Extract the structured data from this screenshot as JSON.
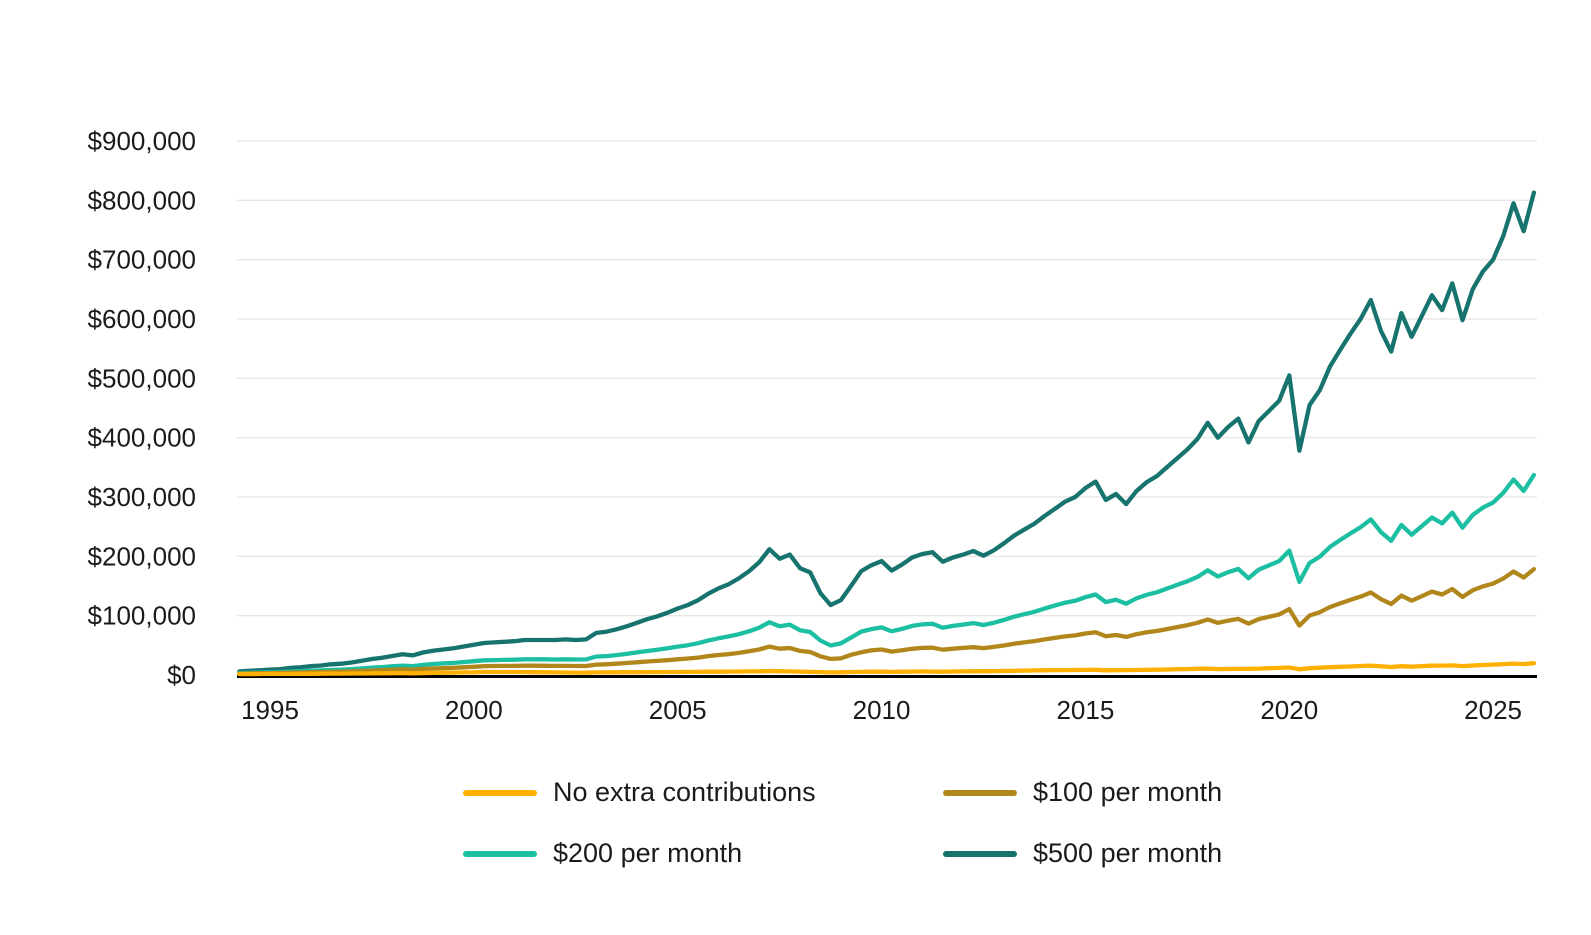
{
  "chart_data": {
    "type": "line",
    "title": "",
    "xlabel": "",
    "ylabel": "",
    "grid": "horizontal",
    "legend_position": "bottom",
    "xlim": [
      1994.25,
      2026.0
    ],
    "ylim": [
      0,
      900000
    ],
    "y_ticks": [
      {
        "value": 0,
        "label": "$0"
      },
      {
        "value": 100000,
        "label": "$100,000"
      },
      {
        "value": 200000,
        "label": "$200,000"
      },
      {
        "value": 300000,
        "label": "$300,000"
      },
      {
        "value": 400000,
        "label": "$400,000"
      },
      {
        "value": 500000,
        "label": "$500,000"
      },
      {
        "value": 600000,
        "label": "$600,000"
      },
      {
        "value": 700000,
        "label": "$700,000"
      },
      {
        "value": 800000,
        "label": "$800,000"
      },
      {
        "value": 900000,
        "label": "$900,000"
      }
    ],
    "x_ticks": [
      {
        "value": 1995,
        "label": "1995"
      },
      {
        "value": 2000,
        "label": "2000"
      },
      {
        "value": 2005,
        "label": "2005"
      },
      {
        "value": 2010,
        "label": "2010"
      },
      {
        "value": 2015,
        "label": "2015"
      },
      {
        "value": 2020,
        "label": "2020"
      },
      {
        "value": 2025,
        "label": "2025"
      }
    ],
    "colors": {
      "axis_line": "#000000",
      "gridline": "#e3e3e3",
      "text": "#1b1b1b"
    },
    "x": [
      1994.25,
      1994.5,
      1994.75,
      1995.0,
      1995.25,
      1995.5,
      1995.75,
      1996.0,
      1996.25,
      1996.5,
      1996.75,
      1997.0,
      1997.25,
      1997.5,
      1997.75,
      1998.0,
      1998.25,
      1998.5,
      1998.75,
      1999.0,
      1999.25,
      1999.5,
      1999.75,
      2000.0,
      2000.25,
      2000.5,
      2000.75,
      2001.0,
      2001.25,
      2001.5,
      2001.75,
      2002.0,
      2002.25,
      2002.5,
      2002.75,
      2003.0,
      2003.25,
      2003.5,
      2003.75,
      2004.0,
      2004.25,
      2004.5,
      2004.75,
      2005.0,
      2005.25,
      2005.5,
      2005.75,
      2006.0,
      2006.25,
      2006.5,
      2006.75,
      2007.0,
      2007.25,
      2007.5,
      2007.75,
      2008.0,
      2008.25,
      2008.5,
      2008.75,
      2009.0,
      2009.25,
      2009.5,
      2009.75,
      2010.0,
      2010.25,
      2010.5,
      2010.75,
      2011.0,
      2011.25,
      2011.5,
      2011.75,
      2012.0,
      2012.25,
      2012.5,
      2012.75,
      2013.0,
      2013.25,
      2013.5,
      2013.75,
      2014.0,
      2014.25,
      2014.5,
      2014.75,
      2015.0,
      2015.25,
      2015.5,
      2015.75,
      2016.0,
      2016.25,
      2016.5,
      2016.75,
      2017.0,
      2017.25,
      2017.5,
      2017.75,
      2018.0,
      2018.25,
      2018.5,
      2018.75,
      2019.0,
      2019.25,
      2019.5,
      2019.75,
      2020.0,
      2020.25,
      2020.5,
      2020.75,
      2021.0,
      2021.25,
      2021.5,
      2021.75,
      2022.0,
      2022.25,
      2022.5,
      2022.75,
      2023.0,
      2023.25,
      2023.5,
      2023.75,
      2024.0,
      2024.25,
      2024.5,
      2024.75,
      2025.0,
      2025.25,
      2025.5,
      2025.75,
      2026.0
    ],
    "series": [
      {
        "key": "no_extra",
        "name": "No extra contributions",
        "color": "#FFB000",
        "values": [
          1500,
          1600,
          1700,
          1800,
          1900,
          1900,
          2000,
          2100,
          2200,
          2300,
          2400,
          2500,
          2600,
          2700,
          2900,
          3000,
          3200,
          2900,
          3200,
          3500,
          3800,
          4000,
          4300,
          4600,
          5200,
          5100,
          5100,
          5000,
          4900,
          4700,
          4600,
          4400,
          4200,
          4100,
          3900,
          4300,
          4400,
          4500,
          4700,
          4800,
          4900,
          4900,
          5000,
          5100,
          5200,
          5300,
          5500,
          5600,
          5800,
          5900,
          6100,
          6300,
          6800,
          6400,
          6100,
          5700,
          5300,
          4900,
          4400,
          4600,
          5000,
          5300,
          5600,
          5800,
          5300,
          5500,
          5800,
          6000,
          5800,
          5500,
          5900,
          6200,
          6300,
          6400,
          6600,
          6800,
          7100,
          7400,
          7700,
          8000,
          8200,
          8300,
          8500,
          8600,
          8800,
          8000,
          8100,
          8200,
          8500,
          8700,
          9000,
          9300,
          9700,
          10000,
          10400,
          10800,
          10000,
          10100,
          10200,
          10200,
          10800,
          11400,
          12000,
          12600,
          9600,
          11500,
          12300,
          13200,
          13800,
          14400,
          15100,
          15800,
          14600,
          13400,
          14800,
          14000,
          14800,
          15600,
          15900,
          16200,
          15000,
          16000,
          16800,
          17500,
          18300,
          19200,
          18400,
          19900
        ]
      },
      {
        "key": "100_per_month",
        "name": "$100 per month",
        "color": "#B1861B",
        "values": [
          2400,
          2700,
          3000,
          3200,
          3500,
          3900,
          4200,
          4700,
          5000,
          5400,
          5700,
          6200,
          6900,
          7600,
          8100,
          8800,
          9600,
          8900,
          10200,
          11000,
          11600,
          12200,
          13000,
          13900,
          15000,
          15100,
          15300,
          15400,
          15700,
          15600,
          15500,
          15300,
          15400,
          15100,
          15100,
          17600,
          18100,
          19000,
          20200,
          21400,
          22700,
          23700,
          25000,
          26500,
          27800,
          29400,
          31800,
          33700,
          35200,
          37300,
          39900,
          43000,
          47800,
          44300,
          45500,
          40600,
          38800,
          31500,
          27100,
          28000,
          34000,
          38200,
          41500,
          43000,
          39400,
          41600,
          44200,
          45600,
          46000,
          42600,
          44300,
          45600,
          46800,
          45300,
          47300,
          49800,
          52700,
          54900,
          57200,
          60000,
          62600,
          65000,
          66800,
          69900,
          72200,
          65400,
          67500,
          64200,
          68800,
          72000,
          74200,
          77400,
          80800,
          84000,
          87900,
          93600,
          88000,
          91700,
          94600,
          86600,
          94200,
          98100,
          102000,
          111100,
          83300,
          100200,
          105800,
          114600,
          120600,
          126500,
          132100,
          139000,
          127700,
          119700,
          133800,
          125200,
          132800,
          140500,
          135700,
          145000,
          131600,
          142800,
          149400,
          154000,
          162600,
          174400,
          164300,
          178500
        ]
      },
      {
        "key": "200_per_month",
        "name": "$200 per month",
        "color": "#1DBFA3",
        "values": [
          3300,
          3800,
          4200,
          4700,
          5100,
          5900,
          6400,
          7300,
          7700,
          8600,
          9000,
          9900,
          11200,
          12400,
          13300,
          14600,
          15900,
          15000,
          17100,
          18500,
          19500,
          20400,
          21800,
          23200,
          24700,
          25100,
          25500,
          25800,
          26500,
          26400,
          26400,
          26200,
          26500,
          26100,
          26300,
          31000,
          31800,
          33500,
          35600,
          38100,
          40500,
          42500,
          45000,
          47900,
          50300,
          53600,
          58100,
          61800,
          65000,
          68700,
          73700,
          79800,
          88900,
          82200,
          84900,
          75400,
          72400,
          58100,
          49800,
          53200,
          63000,
          73200,
          77400,
          80300,
          73600,
          77700,
          82700,
          85200,
          86300,
          79700,
          82700,
          84900,
          87400,
          84200,
          88000,
          92900,
          98300,
          102400,
          106600,
          112000,
          116900,
          121800,
          125100,
          131200,
          135700,
          122800,
          126900,
          120100,
          129100,
          135200,
          139400,
          145600,
          151800,
          158000,
          165400,
          176500,
          166000,
          173300,
          178900,
          162900,
          177700,
          184800,
          191900,
          209600,
          156900,
          188900,
          199400,
          215900,
          227500,
          238600,
          249100,
          262300,
          240800,
          226000,
          252900,
          236400,
          250900,
          265400,
          255500,
          273700,
          248200,
          269600,
          282100,
          290500,
          307000,
          329500,
          310200,
          337100
        ]
      },
      {
        "key": "500_per_month",
        "name": "$500 per month",
        "color": "#16736D",
        "values": [
          6000,
          7000,
          8000,
          9000,
          10000,
          12000,
          13000,
          15000,
          16000,
          18000,
          19000,
          21000,
          24000,
          27000,
          29000,
          32000,
          35000,
          33000,
          38000,
          41000,
          43000,
          45000,
          48000,
          51000,
          54000,
          55000,
          56000,
          57000,
          59000,
          59000,
          59000,
          59000,
          60000,
          59000,
          60000,
          71000,
          73000,
          77000,
          82000,
          88000,
          94000,
          99000,
          105000,
          112000,
          118000,
          126000,
          137000,
          146000,
          153000,
          163000,
          175000,
          190000,
          212000,
          196000,
          203000,
          180000,
          173000,
          138000,
          118000,
          126000,
          150000,
          175000,
          185000,
          192000,
          176000,
          186000,
          198000,
          204000,
          207000,
          191000,
          198000,
          203000,
          209000,
          201000,
          210000,
          222000,
          235000,
          245000,
          255000,
          268000,
          280000,
          292000,
          300000,
          315000,
          326000,
          295000,
          305000,
          288000,
          310000,
          325000,
          335000,
          350000,
          365000,
          380000,
          398000,
          425000,
          400000,
          418000,
          432000,
          392000,
          428000,
          445000,
          462000,
          505000,
          378000,
          455000,
          480000,
          520000,
          548000,
          575000,
          600000,
          632000,
          580000,
          545000,
          610000,
          570000,
          605000,
          640000,
          615000,
          660000,
          598000,
          650000,
          680000,
          700000,
          740000,
          795000,
          748000,
          813000
        ]
      }
    ],
    "legend_order": [
      0,
      1,
      2,
      3
    ]
  }
}
